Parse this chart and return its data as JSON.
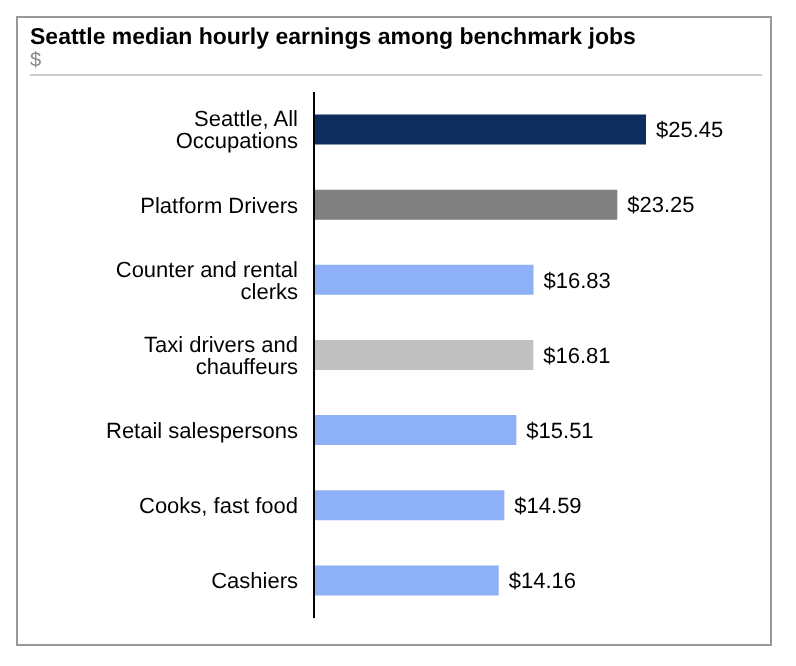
{
  "chart_data": {
    "type": "bar",
    "orientation": "horizontal",
    "title": "Seattle median hourly earnings among benchmark jobs",
    "subtitle": "$",
    "categories": [
      "Seattle, All Occupations",
      "Platform Drivers",
      "Counter and rental clerks",
      "Taxi drivers and chauffeurs",
      "Retail salespersons",
      "Cooks, fast food",
      "Cashiers"
    ],
    "values": [
      25.45,
      23.25,
      16.83,
      16.81,
      15.51,
      14.59,
      14.16
    ],
    "value_labels": [
      "$25.45",
      "$23.25",
      "$16.83",
      "$16.81",
      "$15.51",
      "$14.59",
      "$14.16"
    ],
    "colors": [
      "#0e2d5e",
      "#808080",
      "#8eb0f6",
      "#c0c0c0",
      "#8eb0f6",
      "#8eb0f6",
      "#8eb0f6"
    ],
    "grid": false,
    "legend": false
  }
}
